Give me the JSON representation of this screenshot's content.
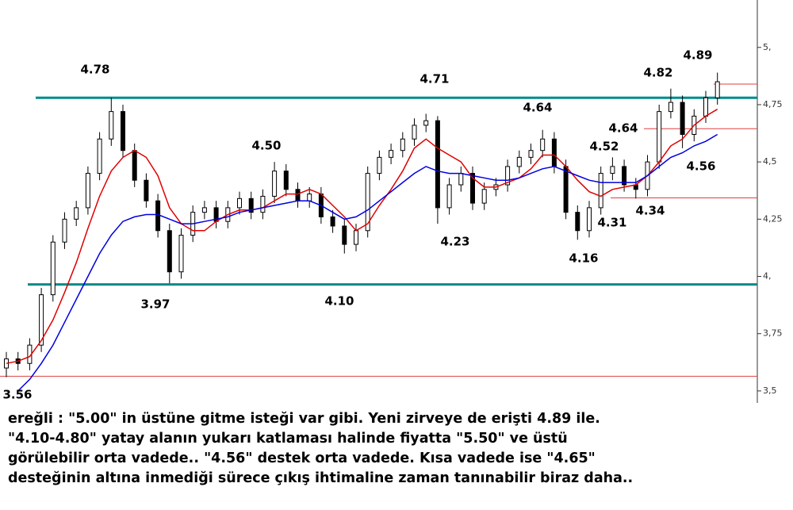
{
  "chart_data": {
    "type": "candlestick",
    "ylim": [
      3.458,
      5.207
    ],
    "yticks": [
      {
        "value": 5,
        "label": "5,"
      },
      {
        "value": 4.75,
        "label": "4,75"
      },
      {
        "value": 4.5,
        "label": "4,5"
      },
      {
        "value": 4.25,
        "label": "4,25"
      },
      {
        "value": 4,
        "label": "4,"
      },
      {
        "value": 3.75,
        "label": "3,75"
      },
      {
        "value": 3.5,
        "label": "3,5"
      }
    ],
    "open": [
      3.6,
      3.64,
      3.62,
      3.7,
      3.92,
      4.15,
      4.25,
      4.3,
      4.45,
      4.6,
      4.72,
      4.55,
      4.42,
      4.33,
      4.2,
      4.02,
      4.18,
      4.28,
      4.3,
      4.24,
      4.3,
      4.34,
      4.28,
      4.35,
      4.46,
      4.38,
      4.33,
      4.36,
      4.26,
      4.22,
      4.14,
      4.2,
      4.45,
      4.52,
      4.55,
      4.6,
      4.66,
      4.68,
      4.3,
      4.4,
      4.45,
      4.32,
      4.38,
      4.4,
      4.48,
      4.52,
      4.55,
      4.6,
      4.48,
      4.28,
      4.2,
      4.3,
      4.45,
      4.48,
      4.4,
      4.38,
      4.5,
      4.72,
      4.76,
      4.62,
      4.7,
      4.78
    ],
    "high": [
      3.67,
      3.67,
      3.73,
      3.95,
      4.18,
      4.28,
      4.33,
      4.48,
      4.63,
      4.78,
      4.75,
      4.58,
      4.45,
      4.36,
      4.23,
      4.21,
      4.31,
      4.33,
      4.33,
      4.33,
      4.37,
      4.37,
      4.38,
      4.5,
      4.49,
      4.41,
      4.39,
      4.39,
      4.29,
      4.25,
      4.23,
      4.48,
      4.55,
      4.58,
      4.63,
      4.69,
      4.71,
      4.7,
      4.43,
      4.48,
      4.48,
      4.41,
      4.43,
      4.51,
      4.55,
      4.58,
      4.64,
      4.63,
      4.51,
      4.31,
      4.33,
      4.48,
      4.52,
      4.51,
      4.43,
      4.53,
      4.75,
      4.82,
      4.79,
      4.73,
      4.81,
      4.89
    ],
    "low": [
      3.56,
      3.59,
      3.59,
      3.67,
      3.89,
      4.12,
      4.22,
      4.27,
      4.42,
      4.57,
      4.52,
      4.39,
      4.3,
      4.17,
      3.97,
      3.99,
      4.15,
      4.25,
      4.21,
      4.21,
      4.27,
      4.25,
      4.25,
      4.32,
      4.35,
      4.3,
      4.3,
      4.23,
      4.19,
      4.1,
      4.11,
      4.17,
      4.42,
      4.49,
      4.52,
      4.57,
      4.63,
      4.23,
      4.27,
      4.37,
      4.29,
      4.29,
      4.35,
      4.37,
      4.45,
      4.49,
      4.52,
      4.45,
      4.25,
      4.16,
      4.17,
      4.27,
      4.42,
      4.37,
      4.34,
      4.35,
      4.47,
      4.69,
      4.56,
      4.59,
      4.67,
      4.75
    ],
    "close": [
      3.64,
      3.62,
      3.7,
      3.92,
      4.15,
      4.25,
      4.3,
      4.45,
      4.6,
      4.72,
      4.55,
      4.42,
      4.33,
      4.2,
      4.02,
      4.18,
      4.28,
      4.3,
      4.24,
      4.3,
      4.34,
      4.28,
      4.35,
      4.46,
      4.38,
      4.33,
      4.36,
      4.26,
      4.22,
      4.14,
      4.2,
      4.45,
      4.52,
      4.55,
      4.6,
      4.66,
      4.68,
      4.3,
      4.4,
      4.45,
      4.32,
      4.38,
      4.4,
      4.48,
      4.52,
      4.55,
      4.6,
      4.48,
      4.28,
      4.2,
      4.3,
      4.45,
      4.48,
      4.4,
      4.38,
      4.5,
      4.72,
      4.76,
      4.62,
      4.7,
      4.78,
      4.85
    ],
    "candle_color": "#000000",
    "series": [
      {
        "color": "#e00000",
        "values": [
          3.62,
          3.63,
          3.65,
          3.72,
          3.81,
          3.93,
          4.06,
          4.21,
          4.35,
          4.46,
          4.52,
          4.55,
          4.52,
          4.44,
          4.3,
          4.23,
          4.2,
          4.2,
          4.24,
          4.27,
          4.29,
          4.29,
          4.3,
          4.33,
          4.36,
          4.36,
          4.38,
          4.36,
          4.31,
          4.26,
          4.2,
          4.23,
          4.31,
          4.38,
          4.46,
          4.56,
          4.6,
          4.56,
          4.53,
          4.5,
          4.43,
          4.39,
          4.39,
          4.41,
          4.43,
          4.47,
          4.53,
          4.53,
          4.48,
          4.42,
          4.37,
          4.35,
          4.38,
          4.39,
          4.4,
          4.44,
          4.5,
          4.57,
          4.6,
          4.66,
          4.7,
          4.73
        ]
      },
      {
        "color": "#0000e0",
        "values": [
          null,
          3.5,
          3.55,
          3.62,
          3.7,
          3.8,
          3.9,
          4.0,
          4.1,
          4.18,
          4.24,
          4.26,
          4.27,
          4.27,
          4.25,
          4.23,
          4.23,
          4.24,
          4.25,
          4.26,
          4.28,
          4.29,
          4.3,
          4.31,
          4.32,
          4.33,
          4.33,
          4.31,
          4.28,
          4.25,
          4.26,
          4.29,
          4.33,
          4.37,
          4.41,
          4.45,
          4.48,
          4.46,
          4.45,
          4.45,
          4.44,
          4.43,
          4.42,
          4.42,
          4.43,
          4.45,
          4.47,
          4.48,
          4.46,
          4.44,
          4.42,
          4.41,
          4.41,
          4.41,
          4.41,
          4.44,
          4.48,
          4.52,
          4.54,
          4.57,
          4.59,
          4.62
        ]
      }
    ],
    "hlines": [
      {
        "value": 4.78,
        "color": "#008b8b"
      },
      {
        "value": 3.965,
        "color": "#008b8b"
      },
      {
        "value": 4.84,
        "color": "#e04040"
      },
      {
        "value": 4.645,
        "color": "#e04040"
      },
      {
        "value": 4.343,
        "color": "#e04040"
      },
      {
        "value": 3.564,
        "color": "#e04040"
      }
    ],
    "annotations": [
      "4.78",
      "4.71",
      "4.50",
      "4.64",
      "4.82",
      "4.89",
      "4.64",
      "4.52",
      "4.56",
      "4.34",
      "4.31",
      "4.16",
      "4.23",
      "3.97",
      "4.10",
      "3.56"
    ]
  },
  "caption": [
    "ereğli : \"5.00\" in üstüne gitme isteği var gibi. Yeni zirveye de erişti 4.89 ile.",
    "\"4.10-4.80\" yatay alanın yukarı katlaması halinde fiyatta \"5.50\" ve üstü",
    "görülebilir orta vadede.. \"4.56\" destek orta vadede. Kısa vadede ise \"4.65\"",
    "desteğinin altına inmediği sürece çıkış ihtimaline zaman tanınabilir biraz daha.."
  ]
}
